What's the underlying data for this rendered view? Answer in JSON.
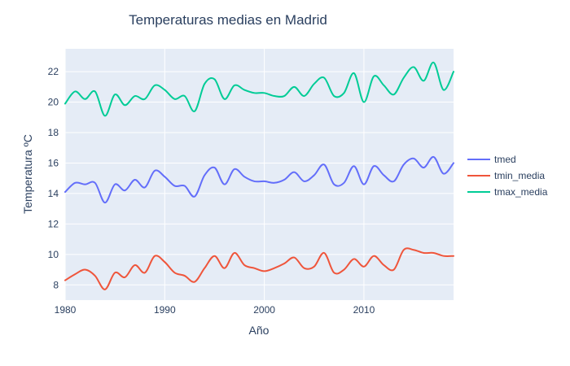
{
  "chart_data": {
    "type": "line",
    "title": "Temperaturas medias en Madrid",
    "xlabel": "Año",
    "ylabel": "Temperatura ºC",
    "xlim": [
      1980,
      2019
    ],
    "ylim": [
      7,
      23.5
    ],
    "x_ticks": [
      1980,
      1990,
      2000,
      2010
    ],
    "y_ticks": [
      8,
      10,
      12,
      14,
      16,
      18,
      20,
      22
    ],
    "grid": true,
    "legend_position": "right",
    "x": [
      1980,
      1981,
      1982,
      1983,
      1984,
      1985,
      1986,
      1987,
      1988,
      1989,
      1990,
      1991,
      1992,
      1993,
      1994,
      1995,
      1996,
      1997,
      1998,
      1999,
      2000,
      2001,
      2002,
      2003,
      2004,
      2005,
      2006,
      2007,
      2008,
      2009,
      2010,
      2011,
      2012,
      2013,
      2014,
      2015,
      2016,
      2017,
      2018,
      2019
    ],
    "series": [
      {
        "name": "tmed",
        "color": "#636efa",
        "values": [
          14.1,
          14.7,
          14.6,
          14.7,
          13.4,
          14.6,
          14.2,
          14.9,
          14.4,
          15.5,
          15.1,
          14.5,
          14.5,
          13.8,
          15.2,
          15.7,
          14.6,
          15.6,
          15.1,
          14.8,
          14.8,
          14.7,
          14.9,
          15.4,
          14.8,
          15.2,
          15.9,
          14.6,
          14.7,
          15.8,
          14.6,
          15.8,
          15.2,
          14.8,
          15.9,
          16.3,
          15.7,
          16.4,
          15.3,
          16.0
        ]
      },
      {
        "name": "tmin_media",
        "color": "#ef553b",
        "values": [
          8.3,
          8.7,
          9.0,
          8.6,
          7.7,
          8.8,
          8.5,
          9.3,
          8.8,
          9.9,
          9.5,
          8.8,
          8.6,
          8.2,
          9.1,
          9.9,
          9.1,
          10.1,
          9.3,
          9.1,
          8.9,
          9.1,
          9.4,
          9.8,
          9.1,
          9.2,
          10.1,
          8.8,
          9.0,
          9.7,
          9.2,
          9.9,
          9.3,
          9.0,
          10.3,
          10.3,
          10.1,
          10.1,
          9.9,
          9.9
        ]
      },
      {
        "name": "tmax_media",
        "color": "#00cc96",
        "values": [
          19.9,
          20.7,
          20.2,
          20.7,
          19.1,
          20.5,
          19.8,
          20.4,
          20.2,
          21.1,
          20.8,
          20.2,
          20.4,
          19.4,
          21.2,
          21.5,
          20.2,
          21.1,
          20.8,
          20.6,
          20.6,
          20.4,
          20.4,
          21.0,
          20.4,
          21.2,
          21.6,
          20.4,
          20.6,
          21.9,
          20.0,
          21.7,
          21.1,
          20.5,
          21.6,
          22.3,
          21.4,
          22.6,
          20.8,
          22.0
        ]
      }
    ]
  }
}
